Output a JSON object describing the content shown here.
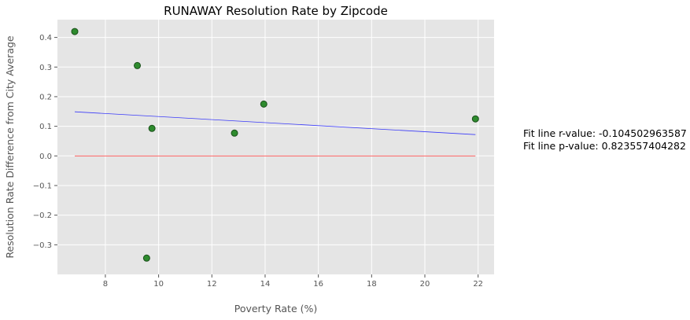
{
  "chart_data": {
    "type": "scatter",
    "title": "RUNAWAY Resolution Rate by Zipcode",
    "xlabel": "Poverty Rate (%)",
    "ylabel": "Resolution Rate Difference from City Average",
    "xlim": [
      6.2,
      22.6
    ],
    "ylim": [
      -0.4,
      0.46
    ],
    "xticks": [
      8,
      10,
      12,
      14,
      16,
      18,
      20,
      22
    ],
    "yticks": [
      -0.3,
      -0.2,
      -0.1,
      0.0,
      0.1,
      0.2,
      0.3,
      0.4
    ],
    "xtick_labels": [
      "8",
      "10",
      "12",
      "14",
      "16",
      "18",
      "20",
      "22"
    ],
    "ytick_labels": [
      "−0.3",
      "−0.2",
      "−0.1",
      "0.0",
      "0.1",
      "0.2",
      "0.3",
      "0.4"
    ],
    "grid": true,
    "points": [
      {
        "x": 6.85,
        "y": 0.42
      },
      {
        "x": 9.2,
        "y": 0.305
      },
      {
        "x": 9.55,
        "y": -0.345
      },
      {
        "x": 9.75,
        "y": 0.093
      },
      {
        "x": 12.85,
        "y": 0.077
      },
      {
        "x": 13.95,
        "y": 0.175
      },
      {
        "x": 21.9,
        "y": 0.125
      }
    ],
    "fit_line": {
      "x": [
        6.85,
        21.9
      ],
      "y": [
        0.149,
        0.072
      ]
    },
    "baseline": {
      "x": [
        6.85,
        21.9
      ],
      "y": [
        0.0,
        0.0
      ]
    },
    "colors": {
      "background": "#e5e5e5",
      "grid": "#ffffff",
      "points": "#2e8b2e",
      "point_edge": "#1a4f1a",
      "fit_line": "#0000ff",
      "baseline": "#ff0000"
    }
  },
  "annotations": {
    "r_value": "Fit line r-value: -0.104502963587",
    "p_value": "Fit line p-value: 0.823557404282"
  }
}
